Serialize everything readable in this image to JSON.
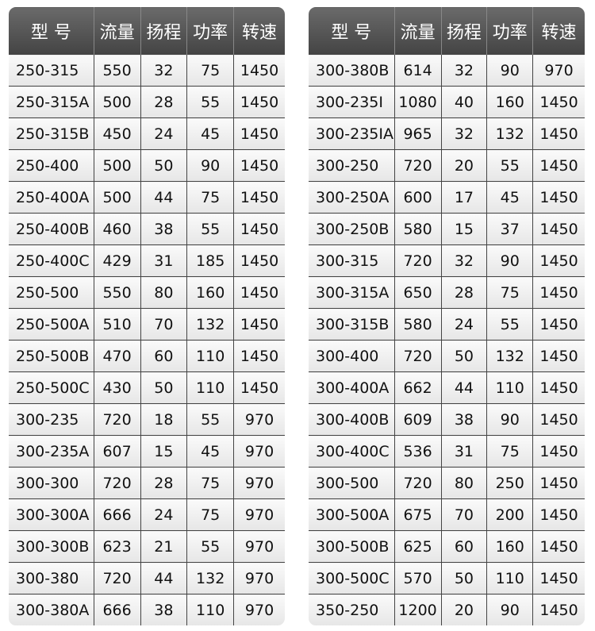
{
  "tables": [
    {
      "header": [
        "型 号",
        "流量",
        "扬程",
        "功率",
        "转速"
      ],
      "rows": [
        [
          "250-315",
          "550",
          "32",
          "75",
          "1450"
        ],
        [
          "250-315A",
          "500",
          "28",
          "55",
          "1450"
        ],
        [
          "250-315B",
          "450",
          "24",
          "45",
          "1450"
        ],
        [
          "250-400",
          "500",
          "50",
          "90",
          "1450"
        ],
        [
          "250-400A",
          "500",
          "44",
          "75",
          "1450"
        ],
        [
          "250-400B",
          "460",
          "38",
          "55",
          "1450"
        ],
        [
          "250-400C",
          "429",
          "31",
          "185",
          "1450"
        ],
        [
          "250-500",
          "550",
          "80",
          "160",
          "1450"
        ],
        [
          "250-500A",
          "510",
          "70",
          "132",
          "1450"
        ],
        [
          "250-500B",
          "470",
          "60",
          "110",
          "1450"
        ],
        [
          "250-500C",
          "430",
          "50",
          "110",
          "1450"
        ],
        [
          "300-235",
          "720",
          "18",
          "55",
          "970"
        ],
        [
          "300-235A",
          "607",
          "15",
          "45",
          "970"
        ],
        [
          "300-300",
          "720",
          "28",
          "75",
          "970"
        ],
        [
          "300-300A",
          "666",
          "24",
          "75",
          "970"
        ],
        [
          "300-300B",
          "623",
          "21",
          "55",
          "970"
        ],
        [
          "300-380",
          "720",
          "44",
          "132",
          "970"
        ],
        [
          "300-380A",
          "666",
          "38",
          "110",
          "970"
        ]
      ]
    },
    {
      "header": [
        "型 号",
        "流量",
        "扬程",
        "功率",
        "转速"
      ],
      "rows": [
        [
          "300-380B",
          "614",
          "32",
          "90",
          "970"
        ],
        [
          "300-235I",
          "1080",
          "40",
          "160",
          "1450"
        ],
        [
          "300-235IA",
          "965",
          "32",
          "132",
          "1450"
        ],
        [
          "300-250",
          "720",
          "20",
          "55",
          "1450"
        ],
        [
          "300-250A",
          "600",
          "17",
          "45",
          "1450"
        ],
        [
          "300-250B",
          "580",
          "15",
          "37",
          "1450"
        ],
        [
          "300-315",
          "720",
          "32",
          "90",
          "1450"
        ],
        [
          "300-315A",
          "650",
          "28",
          "75",
          "1450"
        ],
        [
          "300-315B",
          "580",
          "24",
          "55",
          "1450"
        ],
        [
          "300-400",
          "720",
          "50",
          "132",
          "1450"
        ],
        [
          "300-400A",
          "662",
          "44",
          "110",
          "1450"
        ],
        [
          "300-400B",
          "609",
          "38",
          "90",
          "1450"
        ],
        [
          "300-400C",
          "536",
          "31",
          "75",
          "1450"
        ],
        [
          "300-500",
          "720",
          "80",
          "250",
          "1450"
        ],
        [
          "300-500A",
          "675",
          "70",
          "200",
          "1450"
        ],
        [
          "300-500B",
          "625",
          "60",
          "160",
          "1450"
        ],
        [
          "300-500C",
          "570",
          "50",
          "110",
          "1450"
        ],
        [
          "350-250",
          "1200",
          "20",
          "90",
          "1450"
        ]
      ]
    }
  ]
}
